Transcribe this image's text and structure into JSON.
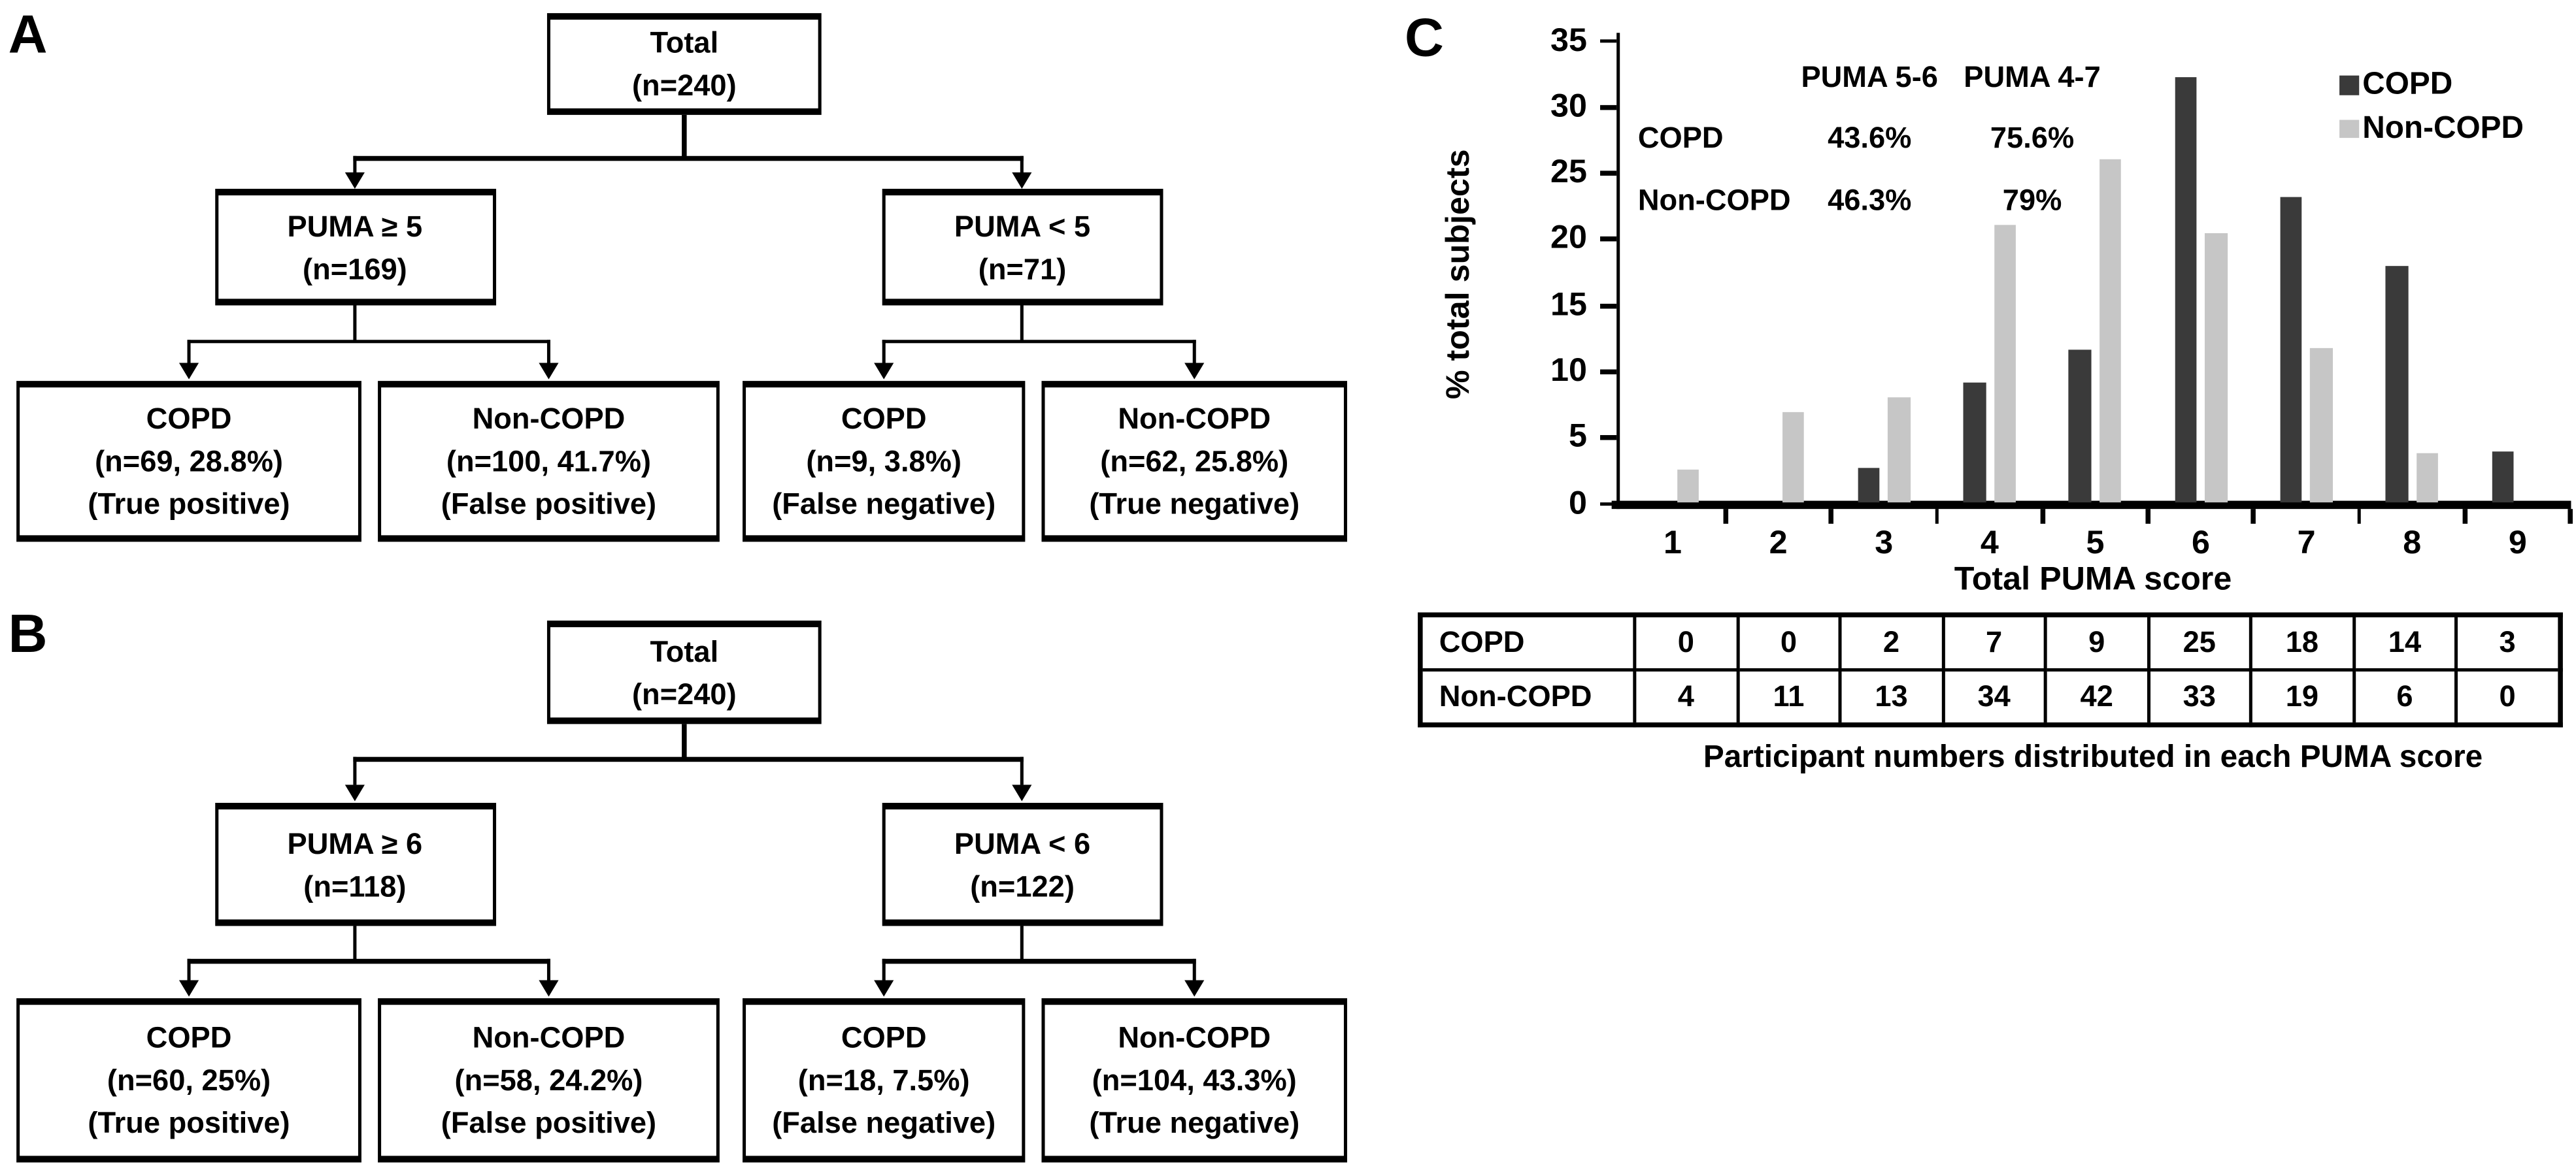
{
  "panels": {
    "a": {
      "label": "A",
      "root": {
        "lines": [
          "Total",
          "(n=240)"
        ]
      },
      "left": {
        "lines": [
          "PUMA ≥ 5",
          "(n=169)"
        ]
      },
      "right": {
        "lines": [
          "PUMA < 5",
          "(n=71)"
        ]
      },
      "leaves": [
        {
          "lines": [
            "COPD",
            "(n=69, 28.8%)",
            "(True positive)"
          ]
        },
        {
          "lines": [
            "Non-COPD",
            "(n=100, 41.7%)",
            "(False positive)"
          ]
        },
        {
          "lines": [
            "COPD",
            "(n=9, 3.8%)",
            "(False negative)"
          ]
        },
        {
          "lines": [
            "Non-COPD",
            "(n=62, 25.8%)",
            "(True negative)"
          ]
        }
      ]
    },
    "b": {
      "label": "B",
      "root": {
        "lines": [
          "Total",
          "(n=240)"
        ]
      },
      "left": {
        "lines": [
          "PUMA ≥ 6",
          "(n=118)"
        ]
      },
      "right": {
        "lines": [
          "PUMA < 6",
          "(n=122)"
        ]
      },
      "leaves": [
        {
          "lines": [
            "COPD",
            "(n=60, 25%)",
            "(True positive)"
          ]
        },
        {
          "lines": [
            "Non-COPD",
            "(n=58, 24.2%)",
            "(False positive)"
          ]
        },
        {
          "lines": [
            "COPD",
            "(n=18, 7.5%)",
            "(False negative)"
          ]
        },
        {
          "lines": [
            "Non-COPD",
            "(n=104, 43.3%)",
            "(True negative)"
          ]
        }
      ]
    },
    "c": {
      "label": "C"
    }
  },
  "chart_data": {
    "type": "bar",
    "title": "",
    "xlabel": "Total PUMA score",
    "ylabel": "% total subjects",
    "ylim": [
      0,
      35
    ],
    "yticks": [
      0,
      5,
      10,
      15,
      20,
      25,
      30,
      35
    ],
    "grid": false,
    "legend_position": "top-right",
    "categories": [
      "1",
      "2",
      "3",
      "4",
      "5",
      "6",
      "7",
      "8",
      "9"
    ],
    "series": [
      {
        "name": "COPD",
        "color": "#3a3a3a",
        "values": [
          0,
          0,
          2.6,
          9.0,
          11.5,
          32.1,
          23.1,
          17.9,
          3.8
        ]
      },
      {
        "name": "Non-COPD",
        "color": "#c6c6c6",
        "values": [
          2.5,
          6.8,
          8.0,
          21.0,
          25.9,
          20.4,
          11.7,
          3.7,
          0
        ]
      }
    ],
    "annotation": {
      "col_headers": [
        "PUMA 5-6",
        "PUMA 4-7"
      ],
      "rows": [
        {
          "label": "COPD",
          "values": [
            "43.6%",
            "75.6%"
          ]
        },
        {
          "label": "Non-COPD",
          "values": [
            "46.3%",
            "79%"
          ]
        }
      ]
    },
    "counts_table": {
      "rows": [
        {
          "label": "COPD",
          "values": [
            "0",
            "0",
            "2",
            "7",
            "9",
            "25",
            "18",
            "14",
            "3"
          ]
        },
        {
          "label": "Non-COPD",
          "values": [
            "4",
            "11",
            "13",
            "34",
            "42",
            "33",
            "19",
            "6",
            "0"
          ]
        }
      ]
    },
    "table_caption": "Participant numbers distributed in each PUMA score"
  }
}
